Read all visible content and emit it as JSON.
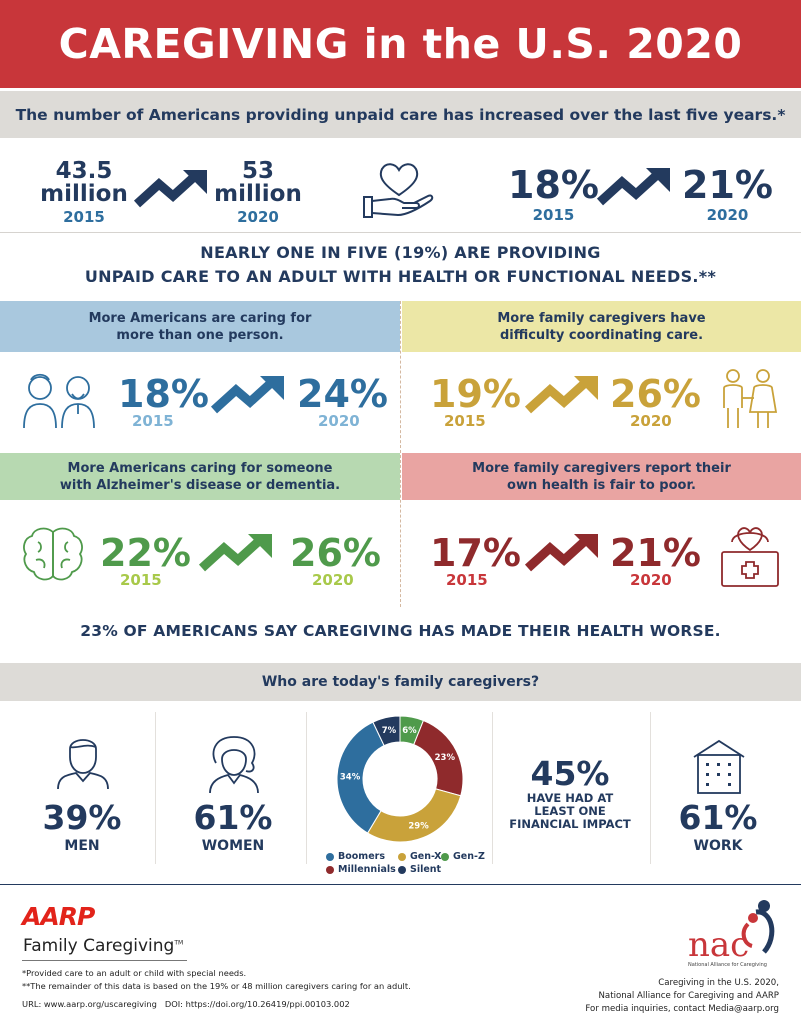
{
  "header": {
    "title": "CAREGIVING in the U.S. 2020"
  },
  "subtitle": "The number of Americans providing unpaid care has increased over the last five years.*",
  "top_stats": {
    "left": {
      "from_value": "43.5",
      "from_unit": "million",
      "from_year": "2015",
      "to_value": "53",
      "to_unit": "million",
      "to_year": "2020"
    },
    "right": {
      "from_value": "18%",
      "from_year": "2015",
      "to_value": "21%",
      "to_year": "2020"
    }
  },
  "nearly": {
    "line1": "NEARLY ONE IN FIVE (19%) ARE PROVIDING",
    "line2": "UNPAID CARE TO AN ADULT WITH HEALTH OR FUNCTIONAL NEEDS.**"
  },
  "panels": [
    {
      "banner": "More Americans are caring for more than one person.",
      "banner_color": "#a9c8de",
      "accent": "#2e6e9e",
      "year_color": "#7fb3d5",
      "from": "18%",
      "to": "24%",
      "from_year": "2015",
      "to_year": "2020",
      "icon": "elderly-couple-icon"
    },
    {
      "banner": "More family caregivers have difficulty coordinating care.",
      "banner_color": "#ece7a6",
      "accent": "#c9a23a",
      "year_color": "#c9a23a",
      "from": "19%",
      "to": "26%",
      "from_year": "2015",
      "to_year": "2020",
      "icon": "couple-holding-hands-icon"
    },
    {
      "banner": "More Americans caring for someone with Alzheimer's disease or dementia.",
      "banner_color": "#b7d9b1",
      "accent": "#4f9a4b",
      "year_color": "#a8c94a",
      "from": "22%",
      "to": "26%",
      "from_year": "2015",
      "to_year": "2020",
      "icon": "brain-icon"
    },
    {
      "banner": "More family caregivers report their own health is fair to poor.",
      "banner_color": "#e9a4a2",
      "accent": "#8f2a2c",
      "year_color": "#c8363a",
      "from": "17%",
      "to": "21%",
      "from_year": "2015",
      "to_year": "2020",
      "icon": "medical-kit-heart-icon"
    }
  ],
  "health_worse": "23% OF AMERICANS SAY CAREGIVING HAS MADE THEIR HEALTH WORSE.",
  "who": {
    "title": "Who are today's family caregivers?",
    "men": {
      "value": "39%",
      "label": "MEN"
    },
    "women": {
      "value": "61%",
      "label": "WOMEN"
    },
    "financial": {
      "value": "45%",
      "line1": "HAVE HAD AT",
      "line2": "LEAST ONE",
      "line3": "FINANCIAL IMPACT"
    },
    "work": {
      "value": "61%",
      "label": "WORK"
    }
  },
  "chart_data": {
    "type": "pie",
    "title": "",
    "labels": [
      "Gen-Z",
      "Millennials",
      "Gen-X",
      "Boomers",
      "Silent"
    ],
    "values": [
      6,
      23,
      29,
      34,
      7
    ],
    "value_labels": [
      "6%",
      "23%",
      "29%",
      "34%",
      "7%"
    ],
    "colors": [
      "#4f9a4b",
      "#8f2a2c",
      "#c9a23a",
      "#2e6e9e",
      "#233a5e"
    ],
    "legend_order": [
      "Boomers",
      "Gen-X",
      "Gen-Z",
      "Millennials",
      "Silent"
    ],
    "legend_position": "bottom"
  },
  "footer": {
    "aarp_logo": "AARP",
    "aarp_sub": "Family Caregiving",
    "tm": "TM",
    "note1": "*Provided care to an adult or child with special needs.",
    "note2": "**The remainder of this data is based on the 19% or 48 million caregivers caring for an adult.",
    "url": "URL: www.aarp.org/uscaregiving",
    "doi": "DOI: https://doi.org/10.26419/ppi.00103.002",
    "nac_logo": "nac",
    "nac_caption": "National Alliance for Caregiving",
    "right1": "Caregiving in the U.S. 2020,",
    "right2": "National Alliance for Caregiving and AARP",
    "right3": "For media inquiries, contact Media@aarp.org"
  }
}
